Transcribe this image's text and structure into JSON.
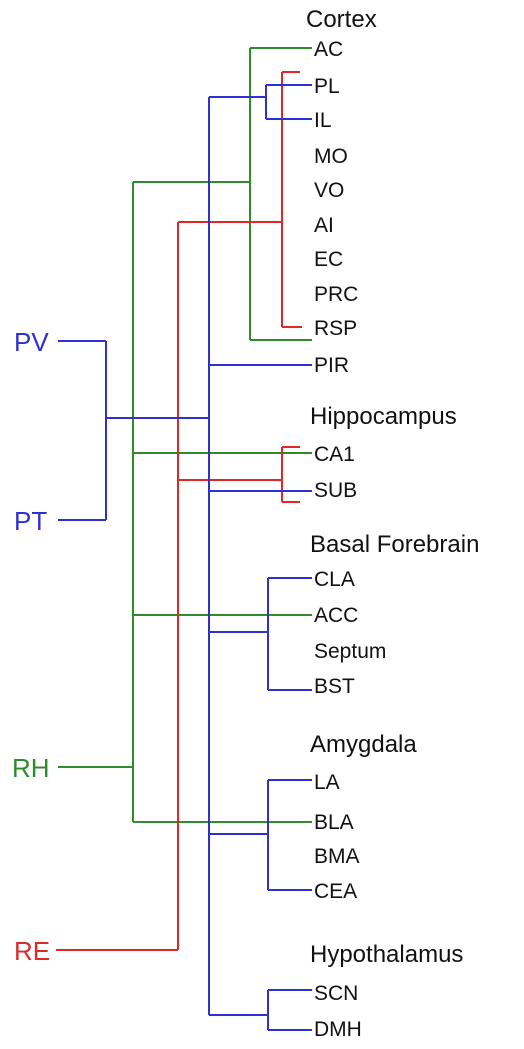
{
  "colors": {
    "blue": "#2f2fd6",
    "green": "#2e8b2e",
    "red": "#e02828",
    "text": "#111111"
  },
  "sources": {
    "pv": "PV",
    "pt": "PT",
    "rh": "RH",
    "re": "RE"
  },
  "groups": {
    "cortex": "Cortex",
    "hippocampus": "Hippocampus",
    "basal_forebrain": "Basal Forebrain",
    "amygdala": "Amygdala",
    "hypothalamus": "Hypothalamus"
  },
  "regions": {
    "ac": "AC",
    "pl": "PL",
    "il": "IL",
    "mo": "MO",
    "vo": "VO",
    "ai": "AI",
    "ec": "EC",
    "prc": "PRC",
    "rsp": "RSP",
    "pir": "PIR",
    "ca1": "CA1",
    "sub": "SUB",
    "cla": "CLA",
    "acc": "ACC",
    "septum": "Septum",
    "bst": "BST",
    "la": "LA",
    "bla": "BLA",
    "bma": "BMA",
    "cea": "CEA",
    "scn": "SCN",
    "dmh": "DMH"
  }
}
